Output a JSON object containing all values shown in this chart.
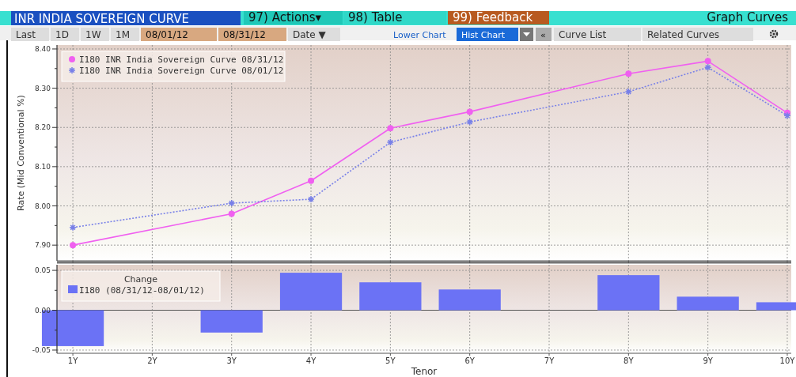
{
  "chart_data": [
    {
      "type": "line",
      "title": "INR INDIA SOVEREIGN CURVE",
      "ylabel": "Rate (Mid Conventional %)",
      "annotations": [
        "97) Actions▾",
        "98) Table",
        "99) Feedback",
        "Graph Curves",
        "Last",
        "1D",
        "1W",
        "1M",
        "08/01/12",
        "08/31/12",
        "Date ▼",
        "Lower Chart",
        "Hist Chart",
        "«",
        "Curve List",
        "Related Curves"
      ],
      "xlim": [
        0.8,
        10.05
      ],
      "xticks": [
        1,
        2,
        3,
        4,
        5,
        6,
        7,
        8,
        9,
        10
      ],
      "ylim": [
        7.86,
        8.41
      ],
      "yticks": [
        {
          "value": 7.9,
          "label": "7.90"
        },
        {
          "value": 7.95,
          "label": null
        },
        {
          "value": 8.0,
          "label": "8.00"
        },
        {
          "value": 8.05,
          "label": null
        },
        {
          "value": 8.1,
          "label": "8.10"
        },
        {
          "value": 8.15,
          "label": null
        },
        {
          "value": 8.2,
          "label": "8.20"
        },
        {
          "value": 8.25,
          "label": null
        },
        {
          "value": 8.3,
          "label": "8.30"
        },
        {
          "value": 8.35,
          "label": null
        },
        {
          "value": 8.4,
          "label": "8.40"
        }
      ],
      "tick_labels": "y",
      "grid": true,
      "legend": "top left",
      "series": [
        {
          "name": "I180 INR India Sovereign Curve 08/31/12",
          "color": "#f060f0",
          "marker": "circle",
          "line_style": "solid",
          "x": [
            1,
            3,
            4,
            5,
            6,
            8,
            9,
            10
          ],
          "values": [
            7.9,
            7.98,
            8.064,
            8.198,
            8.24,
            8.337,
            8.369,
            8.237
          ]
        },
        {
          "name": "I180 INR India Sovereign Curve 08/01/12",
          "color": "#7880e8",
          "marker": "cross",
          "line_style": "dotted",
          "x": [
            1,
            3,
            4,
            5,
            6,
            8,
            9,
            10
          ],
          "values": [
            7.945,
            8.007,
            8.017,
            8.162,
            8.214,
            8.291,
            8.353,
            8.23
          ]
        }
      ]
    },
    {
      "type": "bar",
      "xlabel": "Tenor",
      "legend_title": "Change",
      "legend": "top left",
      "grid": true,
      "xlim": [
        0.8,
        10.05
      ],
      "xticks": [
        {
          "value": 1,
          "label": "1Y"
        },
        {
          "value": 2,
          "label": "2Y"
        },
        {
          "value": 3,
          "label": "3Y"
        },
        {
          "value": 4,
          "label": "4Y"
        },
        {
          "value": 5,
          "label": "5Y"
        },
        {
          "value": 6,
          "label": "6Y"
        },
        {
          "value": 7,
          "label": "7Y"
        },
        {
          "value": 8,
          "label": "8Y"
        },
        {
          "value": 9,
          "label": "9Y"
        },
        {
          "value": 10,
          "label": "10Y"
        }
      ],
      "ylim": [
        -0.054,
        0.057
      ],
      "yticks": [
        {
          "value": -0.05,
          "label": "-0.05"
        },
        {
          "value": -0.025,
          "label": null
        },
        {
          "value": 0,
          "label": "0.00"
        },
        {
          "value": 0.025,
          "label": null
        },
        {
          "value": 0.05,
          "label": "0.05"
        }
      ],
      "series": [
        {
          "name": "I180 (08/31/12-08/01/12)",
          "color": "#6b72f5",
          "x": [
            1,
            3,
            4,
            5,
            6,
            8,
            9,
            10
          ],
          "values": [
            -0.045,
            -0.028,
            0.047,
            0.035,
            0.026,
            0.044,
            0.017,
            0.01
          ]
        }
      ]
    }
  ]
}
